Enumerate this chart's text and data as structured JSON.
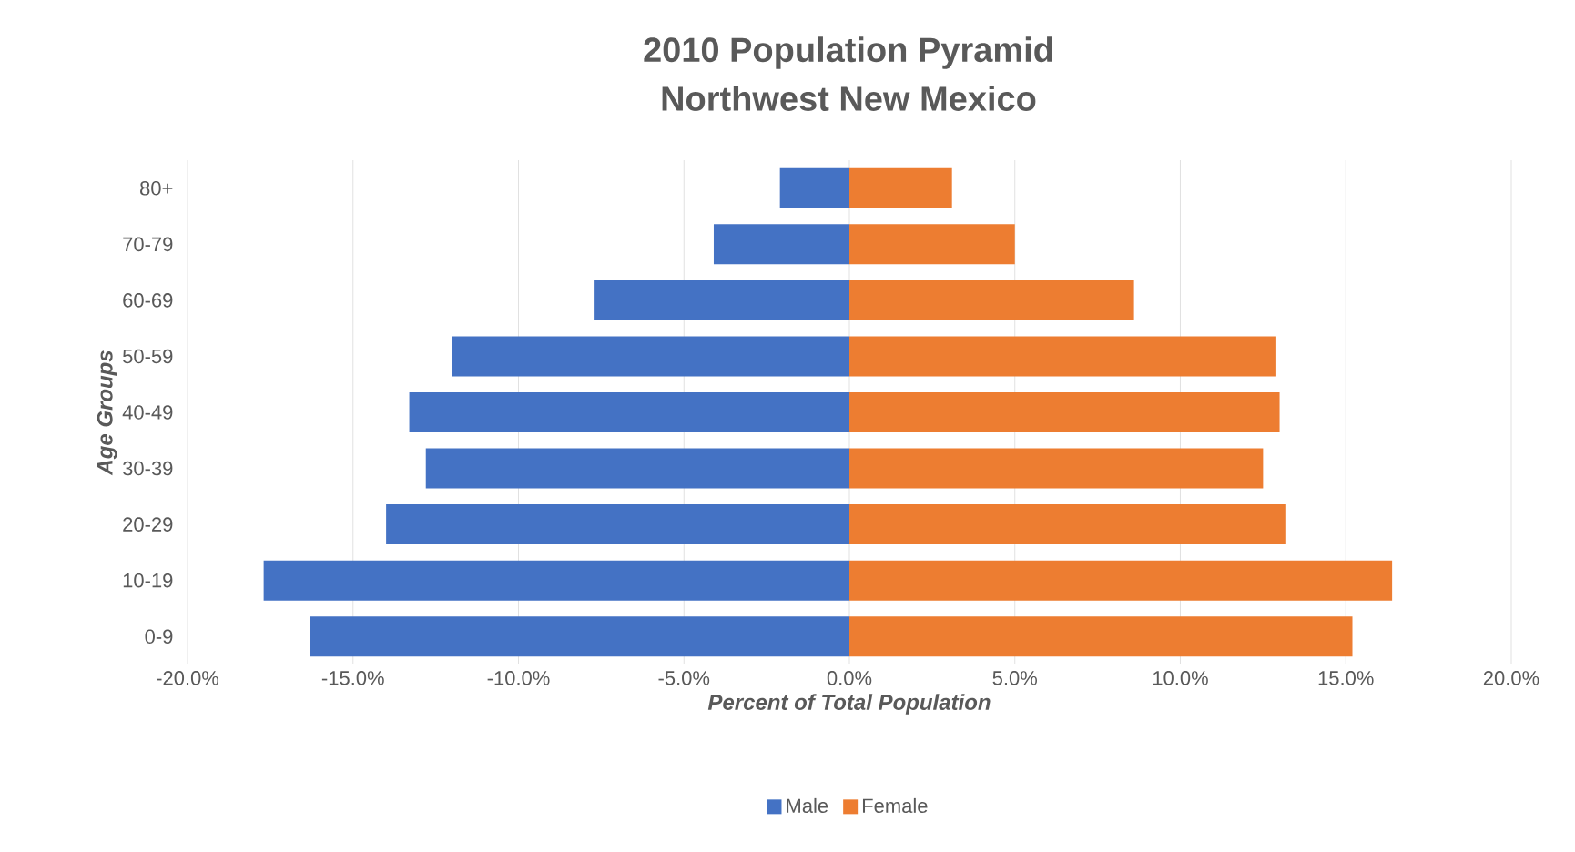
{
  "chart_data": {
    "type": "bar",
    "orientation": "horizontal",
    "title": "2010 Population Pyramid",
    "subtitle": "Northwest New Mexico",
    "xlabel": "Percent of Total Population",
    "ylabel": "Age Groups",
    "categories": [
      "80+",
      "70-79",
      "60-69",
      "50-59",
      "40-49",
      "30-39",
      "20-29",
      "10-19",
      "0-9"
    ],
    "series": [
      {
        "name": "Male",
        "color": "#4472c4",
        "values": [
          -2.1,
          -4.1,
          -7.7,
          -12.0,
          -13.3,
          -12.8,
          -14.0,
          -17.7,
          -16.3
        ]
      },
      {
        "name": "Female",
        "color": "#ed7d31",
        "values": [
          3.1,
          5.0,
          8.6,
          12.9,
          13.0,
          12.5,
          13.2,
          16.4,
          15.2
        ]
      }
    ],
    "xlim": [
      -20,
      20
    ],
    "xticks": [
      {
        "value": -20,
        "label": "-20.0%"
      },
      {
        "value": -15,
        "label": "-15.0%"
      },
      {
        "value": -10,
        "label": "-10.0%"
      },
      {
        "value": -5,
        "label": "-5.0%"
      },
      {
        "value": 0,
        "label": "0.0%"
      },
      {
        "value": 5,
        "label": "5.0%"
      },
      {
        "value": 10,
        "label": "10.0%"
      },
      {
        "value": 15,
        "label": "15.0%"
      },
      {
        "value": 20,
        "label": "20.0%"
      }
    ],
    "grid": "x",
    "legend": "bottom",
    "stacked": true
  }
}
